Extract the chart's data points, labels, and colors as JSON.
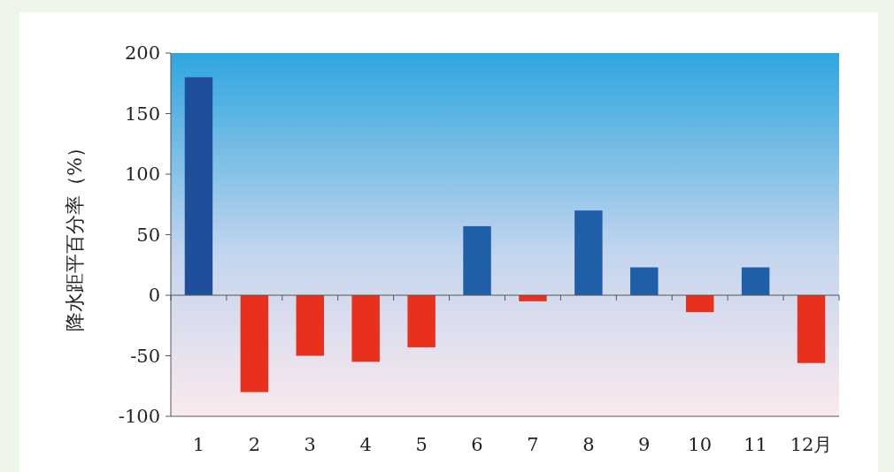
{
  "chart_data": {
    "type": "bar",
    "ylabel": "降水距平百分率（%）",
    "categories": [
      "1",
      "2",
      "3",
      "4",
      "5",
      "6",
      "7",
      "8",
      "9",
      "10",
      "11",
      "12月"
    ],
    "values": [
      180,
      -80,
      -50,
      -55,
      -43,
      57,
      -5,
      70,
      23,
      -14,
      23,
      -56
    ],
    "colors": [
      "#1f4f9a",
      "#e8301c",
      "#e8301c",
      "#e8301c",
      "#e8301c",
      "#1f5fa8",
      "#e8301c",
      "#1f5fa8",
      "#1f5fa8",
      "#e8301c",
      "#1f5fa8",
      "#e8301c"
    ],
    "ylim": [
      -100,
      200
    ],
    "yticks": [
      -100,
      -50,
      0,
      50,
      100,
      150,
      200
    ]
  }
}
